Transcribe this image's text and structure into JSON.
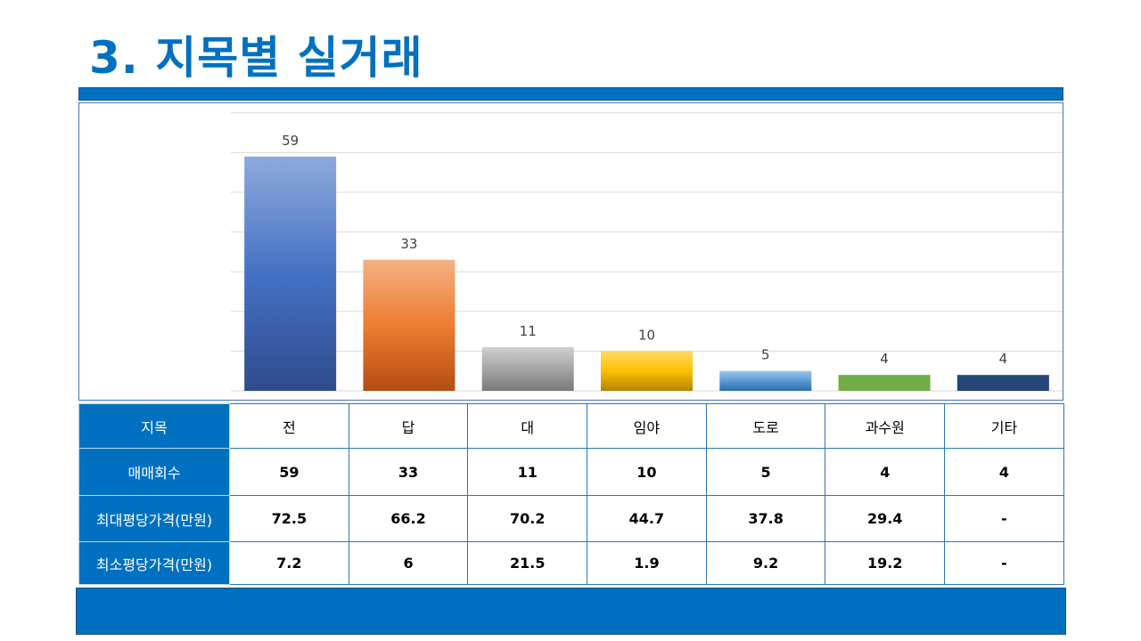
{
  "page": {
    "title": "3. 지목별 실거래"
  },
  "table": {
    "rows": [
      {
        "label": "지목",
        "cells": [
          "전",
          "답",
          "대",
          "임야",
          "도로",
          "과수원",
          "기타"
        ]
      },
      {
        "label": "매매회수",
        "cells": [
          "59",
          "33",
          "11",
          "10",
          "5",
          "4",
          "4"
        ]
      },
      {
        "label": "최대평당가격(만원)",
        "cells": [
          "72.5",
          "66.2",
          "70.2",
          "44.7",
          "37.8",
          "29.4",
          "-"
        ]
      },
      {
        "label": "최소평당가격(만원)",
        "cells": [
          "7.2",
          "6",
          "21.5",
          "1.9",
          "9.2",
          "19.2",
          "-"
        ]
      }
    ]
  },
  "chart_data": {
    "type": "bar",
    "categories": [
      "전",
      "답",
      "대",
      "임야",
      "도로",
      "과수원",
      "기타"
    ],
    "values": [
      59,
      33,
      11,
      10,
      5,
      4,
      4
    ],
    "ylim": [
      0,
      70
    ],
    "grid": true,
    "colors": [
      [
        "#8EA9DB",
        "#4472C4",
        "#2F4B8C"
      ],
      [
        "#F4B183",
        "#ED7D31",
        "#B34E12"
      ],
      [
        "#D0D0D0",
        "#A5A5A5",
        "#7A7A7A"
      ],
      [
        "#FFD966",
        "#FFC000",
        "#B08400"
      ],
      [
        "#9DC3E6",
        "#5B9BD5",
        "#2E6DA8"
      ],
      [
        "#70AD47",
        "#70AD47",
        "#70AD47"
      ],
      [
        "#264478",
        "#264478",
        "#264478"
      ]
    ]
  }
}
